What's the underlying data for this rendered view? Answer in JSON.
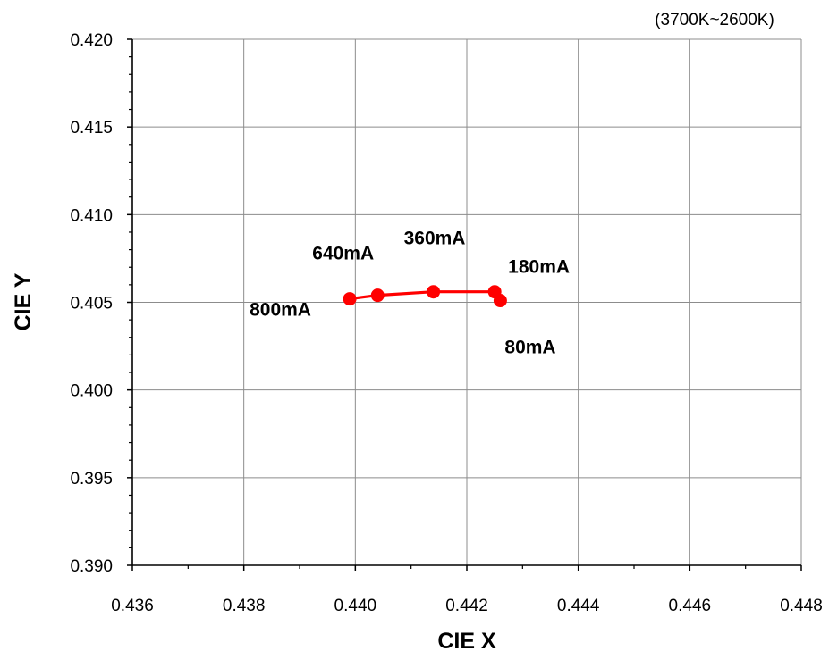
{
  "chart_data": {
    "type": "line",
    "title": "",
    "subtitle": "(3700K~2600K)",
    "xlabel": "CIE X",
    "ylabel": "CIE Y",
    "xlim": [
      0.436,
      0.448
    ],
    "ylim": [
      0.39,
      0.42
    ],
    "x_ticks": [
      "0.436",
      "0.438",
      "0.440",
      "0.442",
      "0.444",
      "0.446",
      "0.448"
    ],
    "y_ticks": [
      "0.390",
      "0.395",
      "0.400",
      "0.405",
      "0.410",
      "0.415",
      "0.420"
    ],
    "grid": true,
    "series": [
      {
        "color": "#ff0000",
        "points": [
          {
            "x": 0.4399,
            "y": 0.4052,
            "label": "800mA"
          },
          {
            "x": 0.4404,
            "y": 0.4054,
            "label": "640mA"
          },
          {
            "x": 0.4414,
            "y": 0.4056,
            "label": "360mA"
          },
          {
            "x": 0.4425,
            "y": 0.4056,
            "label": "180mA"
          },
          {
            "x": 0.4426,
            "y": 0.4051,
            "label": "80mA"
          }
        ]
      }
    ]
  }
}
